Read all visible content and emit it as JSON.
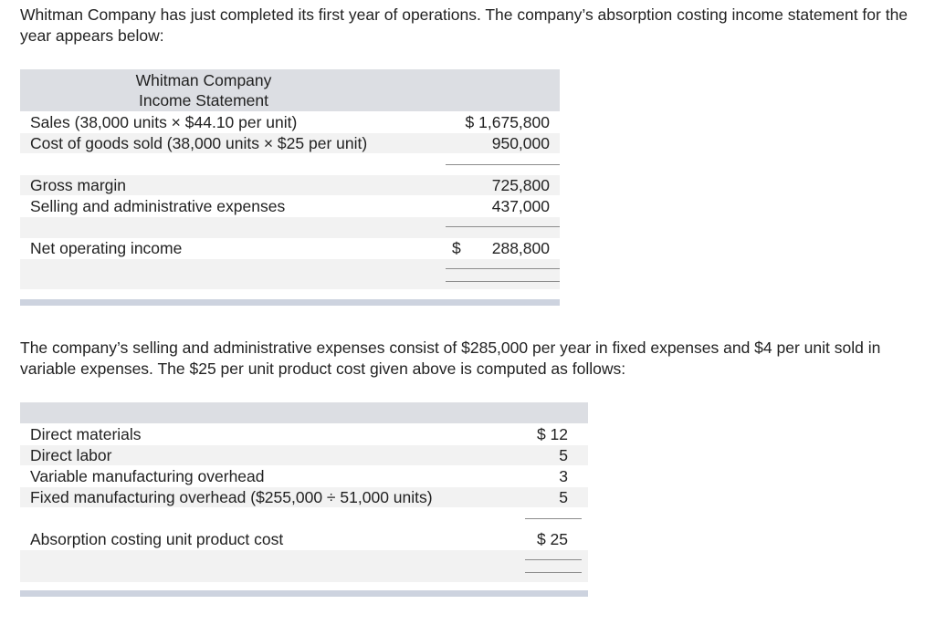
{
  "intro": "Whitman Company has just completed its first year of operations. The company’s absorption costing income statement for the year appears below:",
  "income_statement": {
    "company": "Whitman Company",
    "title": "Income Statement",
    "rows": [
      {
        "label": "Sales (38,000 units × $44.10 per unit)",
        "amount": "$ 1,675,800"
      },
      {
        "label": "Cost of goods sold (38,000 units × $25 per unit)",
        "amount": "950,000"
      },
      {
        "label": "Gross margin",
        "amount": "725,800"
      },
      {
        "label": "Selling and administrative expenses",
        "amount": "437,000"
      },
      {
        "label": "Net operating income",
        "currency": "$",
        "amount": "288,800"
      }
    ]
  },
  "paragraph2": "The company’s selling and administrative expenses consist of $285,000 per year in fixed expenses and $4 per unit sold in variable expenses. The $25 per unit product cost given above is computed as follows:",
  "unit_cost": {
    "rows": [
      {
        "label": "Direct materials",
        "amount": "$ 12"
      },
      {
        "label": "Direct labor",
        "amount": "5"
      },
      {
        "label": "Variable manufacturing overhead",
        "amount": "3"
      },
      {
        "label": "Fixed manufacturing overhead ($255,000 ÷ 51,000 units)",
        "amount": "5"
      },
      {
        "label": "Absorption costing unit product cost",
        "amount": "$ 25"
      }
    ]
  }
}
